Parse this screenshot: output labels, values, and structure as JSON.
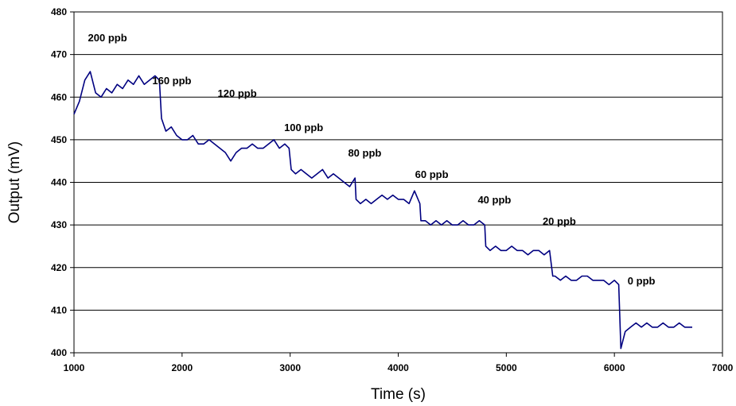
{
  "chart_data": {
    "type": "line",
    "title": "",
    "xlabel": "Time (s)",
    "ylabel": "Output (mV)",
    "xlim": [
      1000,
      7000
    ],
    "ylim": [
      400,
      480
    ],
    "x_ticks": [
      1000,
      2000,
      3000,
      4000,
      5000,
      6000,
      7000
    ],
    "y_ticks": [
      400,
      410,
      420,
      430,
      440,
      450,
      460,
      470,
      480
    ],
    "grid": "horizontal",
    "legend": "none",
    "line_color": "#000080",
    "series": [
      {
        "x": [
          1000,
          1050,
          1100,
          1150,
          1200,
          1250,
          1300,
          1350,
          1400,
          1450,
          1500,
          1550,
          1600,
          1650,
          1700,
          1750,
          1790,
          1810,
          1850,
          1900,
          1950,
          2000,
          2050,
          2100,
          2150,
          2200,
          2250,
          2300,
          2350,
          2400,
          2450,
          2500,
          2550,
          2600,
          2650,
          2700,
          2750,
          2800,
          2850,
          2900,
          2950,
          2990,
          3010,
          3050,
          3100,
          3150,
          3200,
          3250,
          3300,
          3350,
          3400,
          3450,
          3500,
          3550,
          3600,
          3610,
          3650,
          3700,
          3750,
          3800,
          3850,
          3900,
          3950,
          4000,
          4050,
          4100,
          4150,
          4200,
          4210,
          4250,
          4300,
          4350,
          4400,
          4450,
          4500,
          4550,
          4600,
          4650,
          4700,
          4750,
          4800,
          4810,
          4850,
          4900,
          4950,
          5000,
          5050,
          5100,
          5150,
          5200,
          5250,
          5300,
          5350,
          5400,
          5430,
          5450,
          5500,
          5550,
          5600,
          5650,
          5700,
          5750,
          5800,
          5850,
          5900,
          5950,
          6000,
          6040,
          6060,
          6100,
          6150,
          6200,
          6250,
          6300,
          6350,
          6400,
          6450,
          6500,
          6550,
          6600,
          6650,
          6700,
          6720
        ],
        "values": [
          456,
          459,
          464,
          466,
          461,
          460,
          462,
          461,
          463,
          462,
          464,
          463,
          465,
          463,
          464,
          465,
          464,
          455,
          452,
          453,
          451,
          450,
          450,
          451,
          449,
          449,
          450,
          449,
          448,
          447,
          445,
          447,
          448,
          448,
          449,
          448,
          448,
          449,
          450,
          448,
          449,
          448,
          443,
          442,
          443,
          442,
          441,
          442,
          443,
          441,
          442,
          441,
          440,
          439,
          441,
          436,
          435,
          436,
          435,
          436,
          437,
          436,
          437,
          436,
          436,
          435,
          438,
          435,
          431,
          431,
          430,
          431,
          430,
          431,
          430,
          430,
          431,
          430,
          430,
          431,
          430,
          425,
          424,
          425,
          424,
          424,
          425,
          424,
          424,
          423,
          424,
          424,
          423,
          424,
          418,
          418,
          417,
          418,
          417,
          417,
          418,
          418,
          417,
          417,
          417,
          416,
          417,
          416,
          401,
          405,
          406,
          407,
          406,
          407,
          406,
          406,
          407,
          406,
          406,
          407,
          406,
          406,
          406
        ]
      }
    ],
    "annotations": [
      {
        "text": "200 ppb",
        "x": 1310,
        "y": 474
      },
      {
        "text": "160 ppb",
        "x": 1905,
        "y": 464
      },
      {
        "text": "120 ppb",
        "x": 2510,
        "y": 461
      },
      {
        "text": "100 ppb",
        "x": 3125,
        "y": 453
      },
      {
        "text": "80 ppb",
        "x": 3690,
        "y": 447
      },
      {
        "text": "60 ppb",
        "x": 4310,
        "y": 442
      },
      {
        "text": "40 ppb",
        "x": 4890,
        "y": 436
      },
      {
        "text": "20 ppb",
        "x": 5490,
        "y": 431
      },
      {
        "text": "0 ppb",
        "x": 6250,
        "y": 417
      }
    ]
  }
}
